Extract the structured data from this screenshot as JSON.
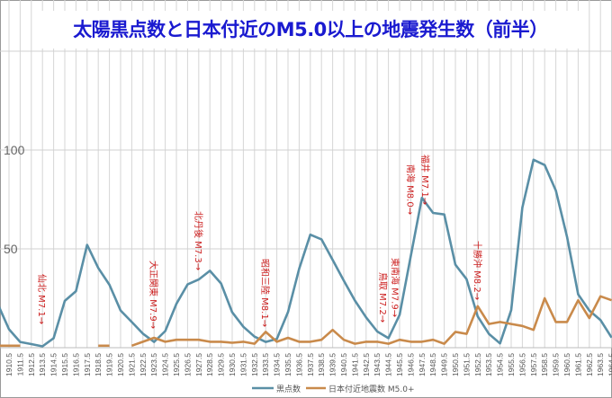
{
  "chart_data": {
    "type": "line",
    "title": "太陽黒点数と日本付近のM5.0以上の地震発生数（前半）",
    "x": [
      1909.5,
      1910.5,
      1911.5,
      1912.5,
      1913.5,
      1914.5,
      1915.5,
      1916.5,
      1917.5,
      1918.5,
      1919.5,
      1920.5,
      1921.5,
      1922.5,
      1923.5,
      1924.5,
      1925.5,
      1926.5,
      1927.5,
      1928.5,
      1929.5,
      1930.5,
      1931.5,
      1932.5,
      1933.5,
      1934.5,
      1935.5,
      1936.5,
      1937.5,
      1938.5,
      1939.5,
      1940.5,
      1941.5,
      1942.5,
      1943.5,
      1944.5,
      1945.5,
      1946.5,
      1947.5,
      1948.5,
      1949.5,
      1950.5,
      1951.5,
      1952.5,
      1953.5,
      1954.5,
      1955.5,
      1956.5,
      1957.5,
      1958.5,
      1959.5,
      1960.5,
      1961.5,
      1962.5,
      1963.5,
      1964.5
    ],
    "tick_labels": [
      "1910.5",
      "1911.5",
      "1912.5",
      "1913.5",
      "1914.5",
      "1915.5",
      "1916.5",
      "1917.5",
      "1918.5",
      "1919.5",
      "1920.5",
      "1921.5",
      "1922.5",
      "1923.5",
      "1924.5",
      "1925.5",
      "1926.5",
      "1927.5",
      "1928.5",
      "1929.5",
      "1930.5",
      "1931.5",
      "1932.5",
      "1933.5",
      "1934.5",
      "1935.5",
      "1936.5",
      "1937.5",
      "1938.5",
      "1939.5",
      "1940.5",
      "1941.5",
      "1942.5",
      "1943.5",
      "1944.5",
      "1945.5",
      "1946.5",
      "1947.5",
      "1948.5",
      "1949.5",
      "1950.5",
      "1951.5",
      "1952.5",
      "1953.5",
      "1954.5",
      "1955.5",
      "1956.5",
      "1957.5",
      "1958.5",
      "1959.5",
      "1960.5",
      "1961.5",
      "1962.5",
      "1963.5",
      "1964.5"
    ],
    "y_ticks": [
      {
        "value": 50,
        "label": "50"
      },
      {
        "value": 100,
        "label": "100"
      }
    ],
    "ylim": [
      0,
      150
    ],
    "grid": true,
    "legend_position": "bottom",
    "series": [
      {
        "name": "黒点数",
        "color": "#5a8fa6",
        "values": [
          22,
          9.3,
          2.9,
          1.8,
          0.7,
          4.8,
          23.7,
          28.6,
          52,
          40.3,
          31.8,
          18.8,
          13,
          7.1,
          2.9,
          8.4,
          22.2,
          32,
          34.5,
          38.9,
          32.5,
          17.9,
          10.6,
          5.6,
          2.9,
          4.4,
          18,
          39.9,
          57.2,
          54.8,
          44.4,
          33.9,
          23.8,
          15.3,
          8.2,
          4.8,
          16.6,
          46.3,
          75.8,
          68.2,
          67.4,
          42,
          34.7,
          15.8,
          7,
          2.2,
          19,
          70.9,
          95.1,
          92.4,
          79.5,
          56.2,
          27,
          18.8,
          14,
          5.1
        ]
      },
      {
        "name": "日本付近地震数 M5.0+",
        "color": "#c98a4b",
        "values": [
          1,
          1,
          1,
          null,
          null,
          null,
          null,
          null,
          null,
          1,
          1,
          null,
          1,
          3,
          5,
          3,
          4,
          4,
          4,
          3,
          3,
          2.5,
          3,
          2,
          8,
          3,
          5,
          3,
          3,
          4,
          9,
          4,
          2,
          3,
          3,
          2,
          4,
          3,
          3,
          4,
          2,
          8,
          7,
          21,
          12,
          13,
          12,
          11,
          9,
          25,
          13,
          13,
          24,
          15,
          26,
          24
        ]
      }
    ],
    "annotations": [
      {
        "x": 1913.5,
        "text": "仙北 M7.1→"
      },
      {
        "x": 1923.5,
        "text": "大正関東 M7.9→"
      },
      {
        "x": 1927.5,
        "text": "北丹後 M7.3→"
      },
      {
        "x": 1933.5,
        "text": "昭和三陸 M8.1→"
      },
      {
        "x": 1943.5,
        "text": "鳥取 M7.2→"
      },
      {
        "x": 1944.5,
        "text": "東南海 M7.9→"
      },
      {
        "x": 1946.5,
        "text": "南海 M8.0→"
      },
      {
        "x": 1948.5,
        "text": "福井 M7.1→"
      },
      {
        "x": 1952.5,
        "text": "十勝沖 M8.2→"
      }
    ],
    "annotation_color": "#cc1f1f"
  }
}
